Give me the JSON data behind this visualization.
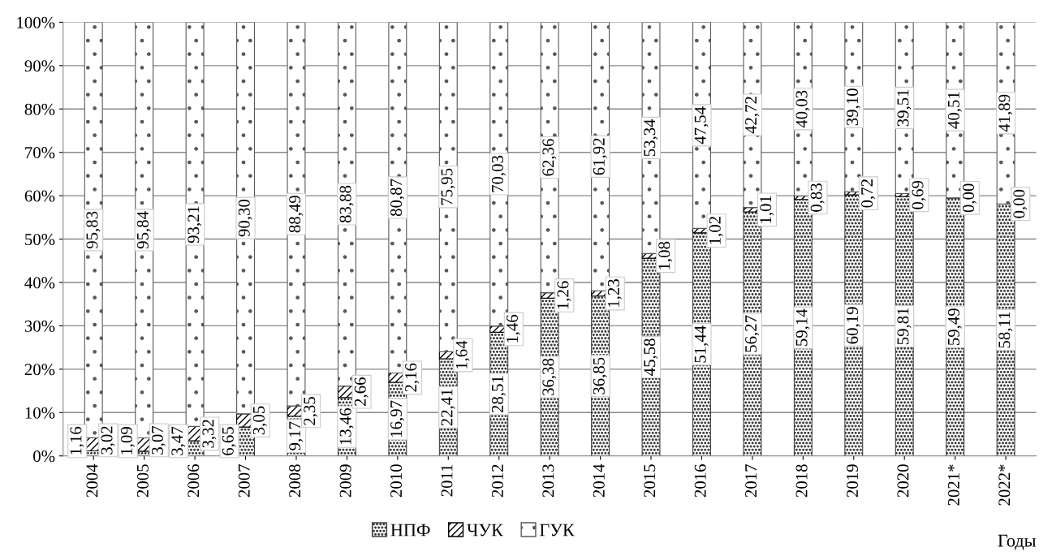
{
  "chart_data": {
    "type": "bar",
    "stacked": true,
    "xlabel": "Годы",
    "categories": [
      "2004",
      "2005",
      "2006",
      "2007",
      "2008",
      "2009",
      "2010",
      "2011",
      "2012",
      "2013",
      "2014",
      "2015",
      "2016",
      "2017",
      "2018",
      "2019",
      "2020",
      "2021*",
      "2022*"
    ],
    "series": [
      {
        "name": "НПФ",
        "color": "#404040",
        "values": [
          1.16,
          1.09,
          3.47,
          6.65,
          9.17,
          13.46,
          16.97,
          22.41,
          28.51,
          36.38,
          36.85,
          45.58,
          51.44,
          56.27,
          59.14,
          60.19,
          59.81,
          59.49,
          58.11
        ],
        "value_labels": [
          "1,16",
          "1,09",
          "3,47",
          "6,65",
          "9,17",
          "13,46",
          "16,97",
          "22,41",
          "28,51",
          "36,38",
          "36,85",
          "45,58",
          "51,44",
          "56,27",
          "59,14",
          "60,19",
          "59,81",
          "59,49",
          "58,11"
        ]
      },
      {
        "name": "ЧУК",
        "color": "#000000",
        "values": [
          3.02,
          3.07,
          3.32,
          3.05,
          2.35,
          2.66,
          2.16,
          1.64,
          1.46,
          1.26,
          1.23,
          1.08,
          1.02,
          1.01,
          0.83,
          0.72,
          0.69,
          0.0,
          0.0
        ],
        "value_labels": [
          "3,02",
          "3,07",
          "3,32",
          "3,05",
          "2,35",
          "2,66",
          "2,16",
          "1,64",
          "1,46",
          "1,26",
          "1,23",
          "1,08",
          "1,02",
          "1,01",
          "0,83",
          "0,72",
          "0,69",
          "0,00",
          "0,00"
        ]
      },
      {
        "name": "ГУК",
        "color": "#595959",
        "values": [
          95.83,
          95.84,
          93.21,
          90.3,
          88.49,
          83.88,
          80.87,
          75.95,
          70.03,
          62.36,
          61.92,
          53.34,
          47.54,
          42.72,
          40.03,
          39.1,
          39.51,
          40.51,
          41.89
        ],
        "value_labels": [
          "95,83",
          "95,84",
          "93,21",
          "90,30",
          "88,49",
          "83,88",
          "80,87",
          "75,95",
          "70,03",
          "62,36",
          "61,92",
          "53,34",
          "47,54",
          "42,72",
          "40,03",
          "39,10",
          "39,51",
          "40,51",
          "41,89"
        ]
      }
    ],
    "ylim": [
      0,
      100
    ],
    "yticks": [
      {
        "value": 0,
        "label": "0%"
      },
      {
        "value": 10,
        "label": "10%"
      },
      {
        "value": 20,
        "label": "20%"
      },
      {
        "value": 30,
        "label": "30%"
      },
      {
        "value": 40,
        "label": "40%"
      },
      {
        "value": 50,
        "label": "50%"
      },
      {
        "value": 60,
        "label": "60%"
      },
      {
        "value": 70,
        "label": "70%"
      },
      {
        "value": 80,
        "label": "80%"
      },
      {
        "value": 90,
        "label": "90%"
      },
      {
        "value": 100,
        "label": "100%"
      }
    ],
    "grid": "y",
    "legend": "bottom"
  }
}
